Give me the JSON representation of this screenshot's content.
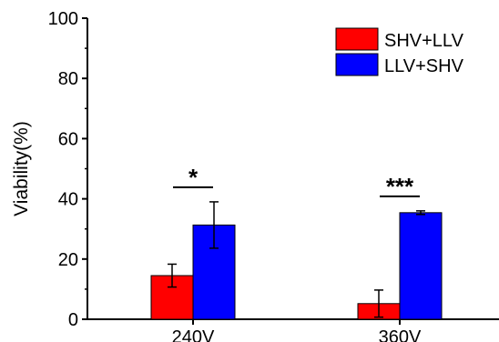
{
  "chart_data": {
    "type": "bar",
    "categories": [
      "240V",
      "360V"
    ],
    "series": [
      {
        "name": "SHV+LLV",
        "color": "#ff0000",
        "values": [
          14.5,
          5.2
        ],
        "errors": [
          3.8,
          4.5
        ]
      },
      {
        "name": "LLV+SHV",
        "color": "#0000ff",
        "values": [
          31.3,
          35.4
        ],
        "errors": [
          7.7,
          0.6
        ]
      }
    ],
    "ylabel": "Viability(%)",
    "xlabel": "",
    "ylim": [
      0,
      100
    ],
    "yticks": [
      "0",
      "20",
      "40",
      "60",
      "80",
      "100"
    ],
    "significance": [
      "*",
      "***"
    ],
    "legend_position": "top-right",
    "grid": false
  }
}
